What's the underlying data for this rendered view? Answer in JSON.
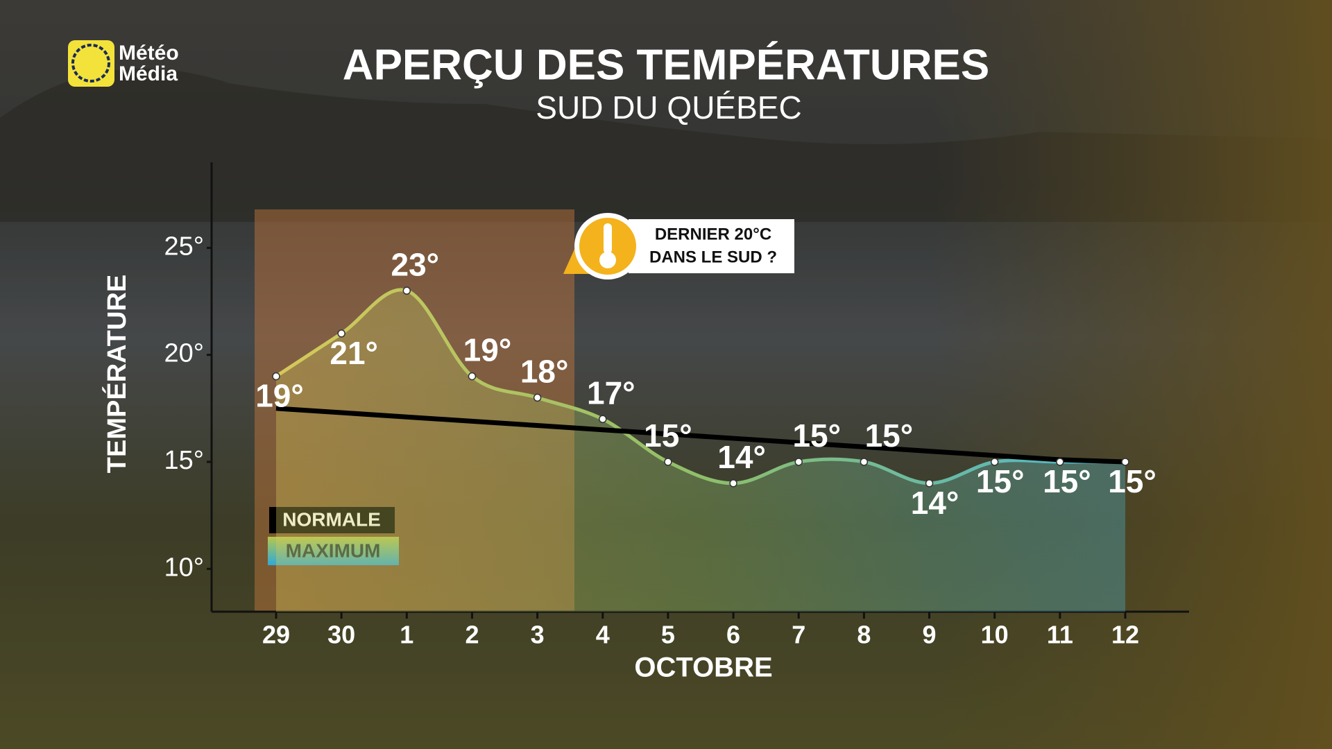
{
  "brand": {
    "line1": "Météo",
    "line2": "Média"
  },
  "chart_data": {
    "type": "line",
    "title": "APERÇU DES TEMPÉRATURES",
    "subtitle": "SUD DU QUÉBEC",
    "y_label": "TEMPÉRATURE",
    "x_label": "OCTOBRE",
    "annotation": {
      "line1": "DERNIER 20°C",
      "line2": "DANS LE SUD ?"
    },
    "categories": [
      "29",
      "30",
      "1",
      "2",
      "3",
      "4",
      "5",
      "6",
      "7",
      "8",
      "9",
      "10",
      "11",
      "12"
    ],
    "series": [
      {
        "name": "MAXIMUM",
        "color": [
          "#d6c95a",
          "#8fbf6a",
          "#4cb6d2"
        ],
        "values": [
          19,
          21,
          23,
          19,
          18,
          17,
          15,
          14,
          15,
          15,
          14,
          15,
          15,
          15
        ],
        "value_labels": [
          "19°",
          "21°",
          "23°",
          "19°",
          "18°",
          "17°",
          "15°",
          "14°",
          "15°",
          "15°",
          "14°",
          "15°",
          "15°",
          "15°"
        ]
      },
      {
        "name": "NORMALE",
        "color": "#000000",
        "values": [
          17.5,
          17.3,
          17.1,
          16.9,
          16.7,
          16.5,
          16.3,
          16.1,
          15.9,
          15.7,
          15.5,
          15.3,
          15.1,
          15.0
        ]
      }
    ],
    "ylim": [
      8,
      29
    ],
    "yticks": [
      {
        "value": 10,
        "label": "10°"
      },
      {
        "value": 15,
        "label": "15°"
      },
      {
        "value": 20,
        "label": "20°"
      },
      {
        "value": 25,
        "label": "25°"
      }
    ],
    "grid": false
  }
}
